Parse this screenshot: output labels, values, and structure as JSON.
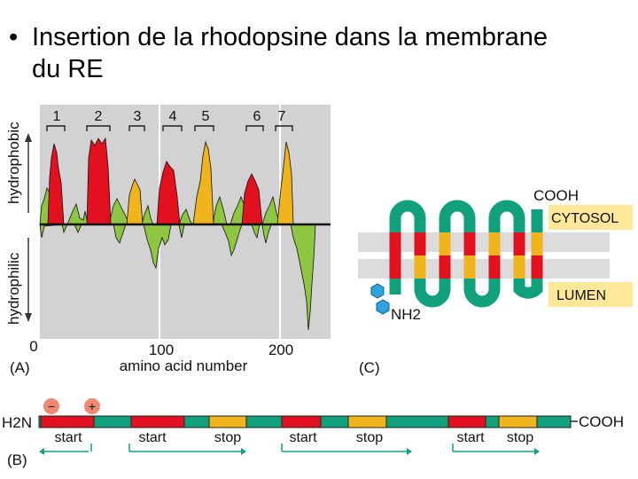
{
  "title": {
    "bullet": "•",
    "line1": "Insertion de la rhodopsine dans la membrane",
    "line2": "du RE"
  },
  "panel_a": {
    "label": "(A)",
    "y_label_top": "hydrophobic",
    "y_label_bottom": "hydrophilic",
    "x_label": "amino acid number",
    "x_ticks": [
      "0",
      "100",
      "200"
    ],
    "segment_labels": [
      "1",
      "2",
      "3",
      "4",
      "5",
      "6",
      "7"
    ]
  },
  "panel_b": {
    "label": "(B)",
    "n_term": "H2N",
    "c_term": "COOH",
    "charge_minus": "−",
    "charge_plus": "+",
    "signal_labels": [
      "start",
      "start",
      "stop",
      "start",
      "stop",
      "start",
      "stop"
    ]
  },
  "panel_c": {
    "label": "(C)",
    "cooh": "COOH",
    "cytosol": "CYTOSOL",
    "lumen": "LUMEN",
    "nh2": "NH2"
  },
  "colors": {
    "hydrophobic_red": "#e3101f",
    "hydrophobic_yellow": "#f0b41c",
    "plot_green": "#8ec641",
    "backbone_green": "#11a07c",
    "plot_bg": "#d2d2d2",
    "label_bg": "#ffe89a",
    "membrane_gray": "#dcdcdc",
    "charge_circle": "#ee8a72",
    "sugar_blue": "#2ea3dd"
  }
}
